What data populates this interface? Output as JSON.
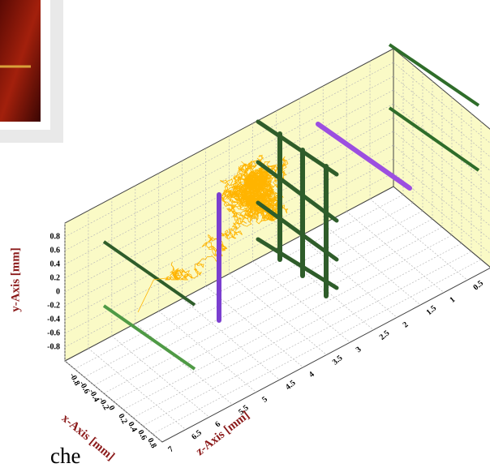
{
  "chart_data": {
    "type": "line3d",
    "xlabel": "x-Axis [mm]",
    "ylabel": "y-Axis [mm]",
    "zlabel": "z-Axis [mm]",
    "xlim": [
      -1,
      1
    ],
    "ylim": [
      -1,
      1
    ],
    "zlim": [
      0,
      7
    ],
    "xticks": [
      -0.8,
      -0.6,
      -0.4,
      -0.2,
      0,
      0.2,
      0.4,
      0.6,
      0.8
    ],
    "yticks": [
      -0.8,
      -0.6,
      -0.4,
      -0.2,
      0,
      0.2,
      0.4,
      0.6,
      0.8
    ],
    "zticks": [
      0.5,
      1,
      1.5,
      2,
      2.5,
      3,
      3.5,
      4,
      4.5,
      5,
      5.5,
      6,
      6.5,
      7
    ],
    "grid": true
  },
  "caption": "che"
}
